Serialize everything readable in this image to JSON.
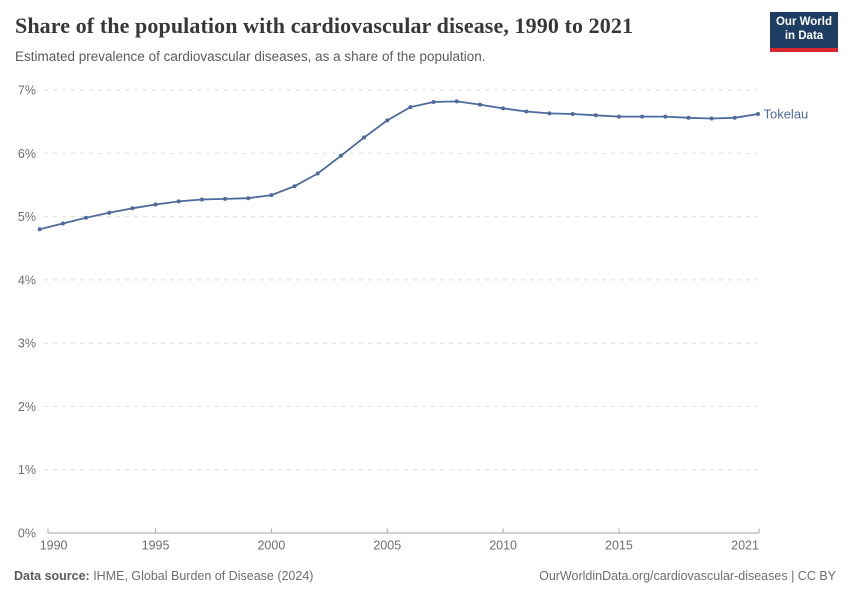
{
  "header": {
    "title": "Share of the population with cardiovascular disease, 1990 to 2021",
    "subtitle": "Estimated prevalence of cardiovascular diseases, as a share of the population.",
    "logo": {
      "line1": "Our World",
      "line2": "in Data"
    }
  },
  "chart_data": {
    "type": "line",
    "title": "Share of the population with cardiovascular disease, 1990 to 2021",
    "xlabel": "",
    "ylabel": "",
    "x": [
      1990,
      1991,
      1992,
      1993,
      1994,
      1995,
      1996,
      1997,
      1998,
      1999,
      2000,
      2001,
      2002,
      2003,
      2004,
      2005,
      2006,
      2007,
      2008,
      2009,
      2010,
      2011,
      2012,
      2013,
      2014,
      2015,
      2016,
      2017,
      2018,
      2019,
      2020,
      2021
    ],
    "series": [
      {
        "name": "Tokelau",
        "color": "#4C6A9C",
        "values": [
          4.8,
          4.89,
          4.98,
          5.06,
          5.13,
          5.19,
          5.24,
          5.27,
          5.28,
          5.29,
          5.34,
          5.48,
          5.68,
          5.96,
          6.25,
          6.52,
          6.73,
          6.81,
          6.82,
          6.77,
          6.71,
          6.66,
          6.63,
          6.62,
          6.6,
          6.58,
          6.58,
          6.58,
          6.56,
          6.55,
          6.56,
          6.62
        ]
      }
    ],
    "xlim": [
      1990,
      2021
    ],
    "ylim": [
      0,
      7
    ],
    "y_ticks": [
      {
        "value": 0,
        "label": "0%"
      },
      {
        "value": 1,
        "label": "1%"
      },
      {
        "value": 2,
        "label": "2%"
      },
      {
        "value": 3,
        "label": "3%"
      },
      {
        "value": 4,
        "label": "4%"
      },
      {
        "value": 5,
        "label": "5%"
      },
      {
        "value": 6,
        "label": "6%"
      },
      {
        "value": 7,
        "label": "7%"
      }
    ],
    "x_ticks": [
      {
        "value": 1990,
        "label": "1990"
      },
      {
        "value": 1995,
        "label": "1995"
      },
      {
        "value": 2000,
        "label": "2000"
      },
      {
        "value": 2005,
        "label": "2005"
      },
      {
        "value": 2010,
        "label": "2010"
      },
      {
        "value": 2015,
        "label": "2015"
      },
      {
        "value": 2021,
        "label": "2021"
      }
    ],
    "grid": "horizontal-dashed",
    "legend_position": "end-of-line",
    "markers": true
  },
  "footer": {
    "source_label": "Data source:",
    "source_value": " IHME, Global Burden of Disease (2024)",
    "link": "OurWorldinData.org/cardiovascular-diseases",
    "separator": " | ",
    "license": "CC BY"
  },
  "colors": {
    "line": "#4C6A9C",
    "grid": "#dddddd",
    "axis": "#a5a5a5",
    "tick_label": "#6e6e6e",
    "title": "#383838",
    "subtitle": "#5b5b5b",
    "logo_bg": "#1d3d63",
    "logo_red": "#d7282f"
  }
}
